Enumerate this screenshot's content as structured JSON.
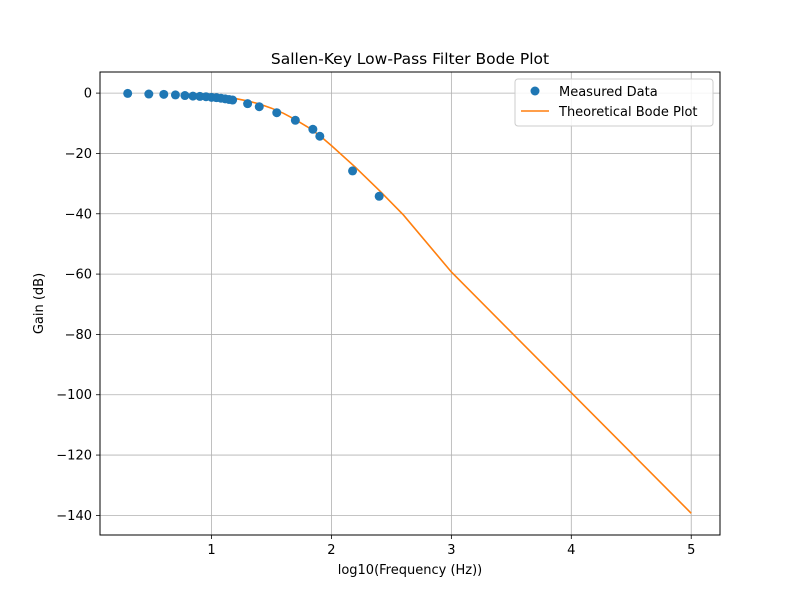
{
  "chart_data": {
    "type": "scatter+line",
    "title": "Sallen-Key Low-Pass Filter Bode Plot",
    "xlabel": "log10(Frequency (Hz))",
    "ylabel": "Gain (dB)",
    "xlim": [
      0.07,
      5.24
    ],
    "ylim": [
      -146.5,
      7
    ],
    "xticks": [
      1,
      2,
      3,
      4,
      5
    ],
    "yticks": [
      0,
      -20,
      -40,
      -60,
      -80,
      -100,
      -120,
      -140
    ],
    "grid": true,
    "legend_position": "top-right",
    "series": [
      {
        "name": "Measured Data",
        "kind": "scatter",
        "color": "#1f77b4",
        "x": [
          0.301,
          0.477,
          0.602,
          0.699,
          0.778,
          0.845,
          0.903,
          0.954,
          1.0,
          1.041,
          1.079,
          1.114,
          1.146,
          1.176,
          1.301,
          1.398,
          1.544,
          1.699,
          1.845,
          1.903,
          2.176,
          2.398
        ],
        "y": [
          -0.1,
          -0.3,
          -0.4,
          -0.6,
          -0.8,
          -1.0,
          -1.1,
          -1.2,
          -1.4,
          -1.5,
          -1.7,
          -1.9,
          -2.1,
          -2.3,
          -3.5,
          -4.5,
          -6.5,
          -9.0,
          -12.0,
          -14.3,
          -25.8,
          -34.2
        ]
      },
      {
        "name": "Theoretical Bode Plot",
        "kind": "line",
        "color": "#ff7f0e",
        "x": [
          1.0,
          1.1,
          1.2,
          1.3,
          1.4,
          1.5,
          1.6,
          1.7,
          1.8,
          1.9,
          2.0,
          2.2,
          2.4,
          2.6,
          3.0,
          3.5,
          4.0,
          4.5,
          5.0
        ],
        "y": [
          -0.8,
          -1.2,
          -1.8,
          -2.6,
          -3.6,
          -5.0,
          -6.7,
          -8.8,
          -11.2,
          -14.0,
          -17.4,
          -24.6,
          -32.3,
          -40.4,
          -59.3,
          -79.3,
          -99.3,
          -119.3,
          -139.3
        ]
      }
    ]
  }
}
